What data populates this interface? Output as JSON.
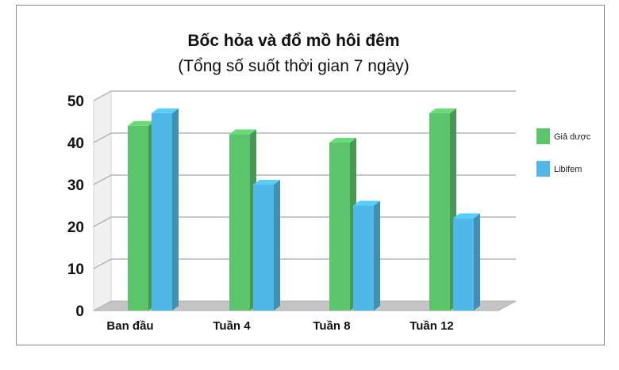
{
  "chart_data": {
    "type": "bar",
    "title": "Bốc hỏa và đổ mồ hôi đêm",
    "subtitle": "(Tổng số suốt thời gian 7 ngày)",
    "categories": [
      "Ban đầu",
      "Tuần 4",
      "Tuần 8",
      "Tuần 12"
    ],
    "series": [
      {
        "name": "Giả dược",
        "values": [
          44,
          42,
          40,
          47
        ],
        "color": "#5cc46a"
      },
      {
        "name": "Libifem",
        "values": [
          47,
          30,
          25,
          22
        ],
        "color": "#4fb8e8"
      }
    ],
    "ylim": [
      0,
      50
    ],
    "yticks": [
      0,
      10,
      20,
      30,
      40,
      50
    ],
    "grid": true,
    "legend_position": "right"
  }
}
